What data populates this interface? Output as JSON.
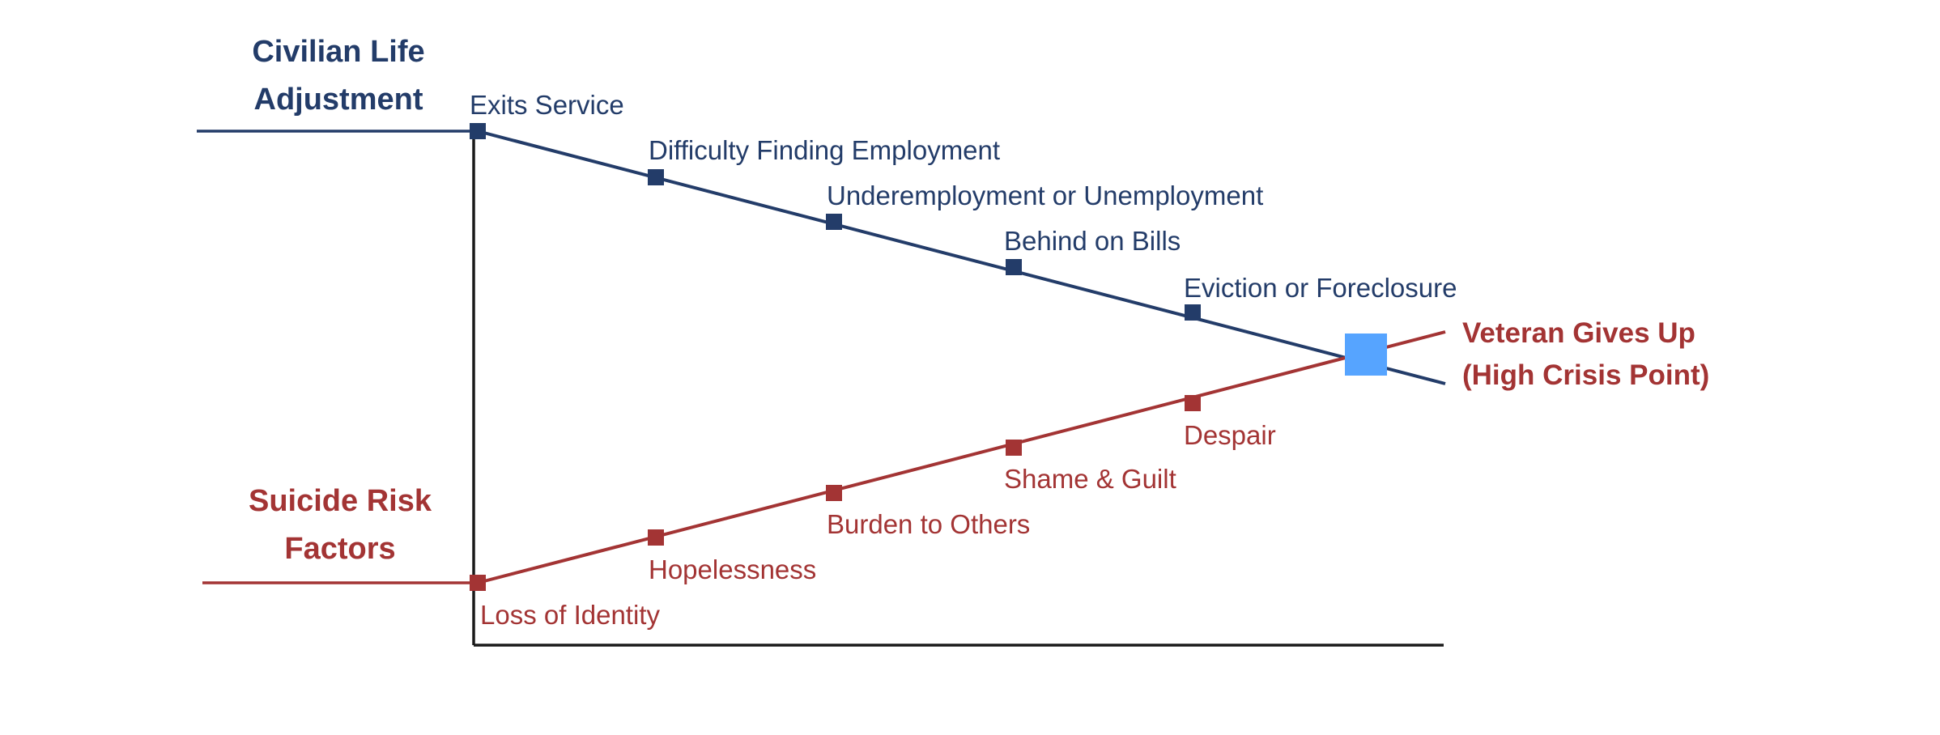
{
  "colors": {
    "blue": "#233c69",
    "red": "#a33434",
    "axis": "#1a1a1a",
    "crisis_marker": "#56a4ff",
    "background": "#ffffff"
  },
  "left_labels": {
    "top": [
      "Civilian Life",
      "Adjustment"
    ],
    "bottom": [
      "Suicide Risk",
      "Factors"
    ]
  },
  "civilian_steps": [
    "Exits Service",
    "Difficulty Finding Employment",
    "Underemployment or Unemployment",
    "Behind on Bills",
    "Eviction or Foreclosure"
  ],
  "risk_steps": [
    "Loss of Identity",
    "Hopelessness",
    "Burden to Others",
    "Shame & Guilt",
    "Despair"
  ],
  "crisis": [
    "Veteran Gives Up",
    "(High Crisis Point)"
  ]
}
